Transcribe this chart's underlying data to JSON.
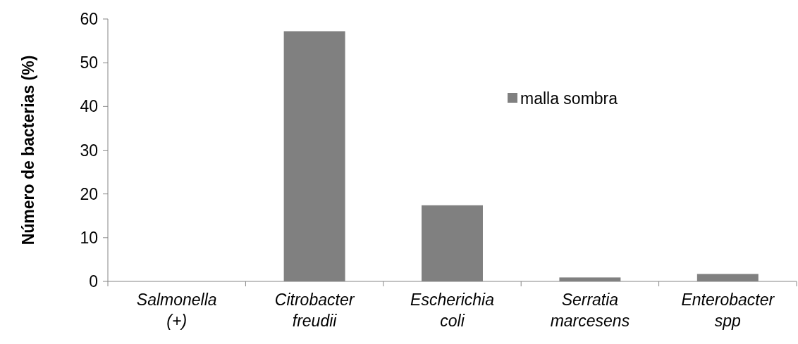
{
  "chart_data": {
    "type": "bar",
    "ylabel": "Número de bacterias (%)",
    "categories": [
      "Salmonella (+)",
      "Citrobacter freudii",
      "Escherichia coli",
      "Serratia marcesens",
      "Enterobacter spp"
    ],
    "series": [
      {
        "name": "malla sombra",
        "color": "#808080",
        "values": [
          0,
          57.2,
          17.4,
          0.9,
          1.7
        ]
      }
    ],
    "ylim": [
      0,
      60
    ],
    "yticks": [
      0,
      10,
      20,
      30,
      40,
      50,
      60
    ],
    "grid": false,
    "legend": "top right"
  }
}
